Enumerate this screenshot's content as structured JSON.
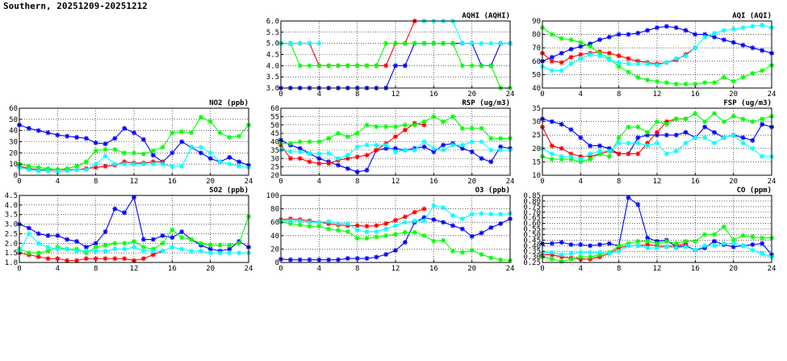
{
  "page_title": "Southern, 20251209-20251212",
  "series_colors": [
    "#0000ff",
    "#ff0000",
    "#00ff00",
    "#00ffff"
  ],
  "chart_data": [
    {
      "id": "aqhi",
      "type": "line",
      "title": "AQHI (AQHI)",
      "xlim": [
        0,
        24
      ],
      "xticks": [
        0,
        4,
        8,
        12,
        16,
        20,
        24
      ],
      "ylim": [
        3.0,
        6.0
      ],
      "yticks": [
        "3.0",
        "3.5",
        "4.0",
        "4.5",
        "5.0",
        "5.5",
        "6.0"
      ],
      "series": [
        {
          "name": "blue",
          "values": [
            3,
            3,
            3,
            3,
            3,
            3,
            3,
            3,
            3,
            3,
            3,
            3,
            4,
            4,
            5,
            5,
            5,
            5,
            5,
            5,
            5,
            4,
            4,
            5,
            5
          ]
        },
        {
          "name": "red",
          "values": [
            5,
            5,
            5,
            5,
            4,
            4,
            4,
            4,
            4,
            4,
            4,
            4,
            5,
            5,
            6,
            6,
            null,
            null,
            null,
            null,
            null,
            null,
            null,
            null,
            null
          ]
        },
        {
          "name": "green",
          "values": [
            5,
            5,
            4,
            4,
            4,
            4,
            4,
            4,
            4,
            4,
            4,
            5,
            5,
            5,
            5,
            5,
            5,
            5,
            5,
            4,
            4,
            4,
            4,
            3,
            3
          ]
        },
        {
          "name": "cyan",
          "values": [
            5,
            5,
            5,
            5,
            5,
            null,
            null,
            null,
            null,
            null,
            null,
            null,
            null,
            null,
            null,
            6,
            6,
            6,
            6,
            5,
            5,
            5,
            5,
            5,
            5
          ]
        }
      ]
    },
    {
      "id": "aqi",
      "type": "line",
      "title": "AQI (AQI)",
      "xlim": [
        0,
        24
      ],
      "xticks": [
        0,
        4,
        8,
        12,
        16,
        20,
        24
      ],
      "ylim": [
        40,
        90
      ],
      "yticks": [
        "40",
        "50",
        "60",
        "70",
        "80",
        "90"
      ],
      "series": [
        {
          "name": "blue",
          "values": [
            60,
            63,
            66,
            69,
            71,
            73,
            76,
            78,
            80,
            80,
            81,
            83,
            85,
            86,
            85,
            83,
            80,
            80,
            78,
            76,
            74,
            72,
            70,
            68,
            66
          ]
        },
        {
          "name": "red",
          "values": [
            66,
            60,
            59,
            63,
            65,
            66,
            67,
            66,
            64,
            62,
            60,
            59,
            58,
            59,
            61,
            65,
            70,
            null,
            null,
            null,
            null,
            null,
            null,
            null,
            null
          ]
        },
        {
          "name": "green",
          "values": [
            85,
            80,
            77,
            76,
            74,
            71,
            66,
            62,
            56,
            52,
            48,
            46,
            45,
            44,
            43,
            43,
            43,
            44,
            44,
            48,
            45,
            48,
            51,
            53,
            57
          ]
        },
        {
          "name": "cyan",
          "values": [
            56,
            53,
            53,
            58,
            62,
            65,
            64,
            61,
            59,
            58,
            58,
            58,
            57,
            59,
            62,
            64,
            70,
            78,
            81,
            83,
            84,
            85,
            86,
            87,
            85
          ]
        }
      ]
    },
    {
      "id": "no2",
      "type": "line",
      "title": "NO2 (ppb)",
      "xlim": [
        0,
        24
      ],
      "xticks": [
        0,
        4,
        8,
        12,
        16,
        20,
        24
      ],
      "ylim": [
        0,
        60
      ],
      "yticks": [
        "0",
        "10",
        "20",
        "30",
        "40",
        "50",
        "60"
      ],
      "series": [
        {
          "name": "blue",
          "values": [
            45,
            42,
            40,
            38,
            36,
            35,
            34,
            33,
            29,
            28,
            33,
            42,
            38,
            32,
            18,
            12,
            20,
            30,
            25,
            20,
            15,
            12,
            16,
            12,
            9
          ]
        },
        {
          "name": "red",
          "values": [
            8,
            6,
            5,
            5,
            5,
            5,
            5,
            6,
            7,
            8,
            9,
            12,
            11,
            11,
            12,
            12,
            null,
            null,
            null,
            null,
            null,
            null,
            null,
            null,
            null
          ]
        },
        {
          "name": "green",
          "values": [
            10,
            8,
            7,
            6,
            5,
            6,
            8,
            12,
            22,
            23,
            23,
            20,
            20,
            19,
            22,
            25,
            38,
            39,
            38,
            52,
            48,
            38,
            34,
            35,
            45
          ]
        },
        {
          "name": "cyan",
          "values": [
            7,
            5,
            4,
            4,
            3,
            4,
            5,
            5,
            10,
            17,
            10,
            10,
            10,
            10,
            10,
            10,
            8,
            8,
            25,
            25,
            20,
            12,
            10,
            8,
            7
          ]
        }
      ]
    },
    {
      "id": "rsp",
      "type": "line",
      "title": "RSP (ug/m3)",
      "xlim": [
        0,
        24
      ],
      "xticks": [
        0,
        4,
        8,
        12,
        16,
        20,
        24
      ],
      "ylim": [
        20,
        60
      ],
      "yticks": [
        "20",
        "25",
        "30",
        "35",
        "40",
        "45",
        "50",
        "55",
        "60"
      ],
      "series": [
        {
          "name": "blue",
          "values": [
            41,
            38,
            36,
            33,
            30,
            28,
            26,
            24,
            22,
            23,
            35,
            36,
            36,
            35,
            36,
            37,
            34,
            38,
            39,
            36,
            34,
            30,
            28,
            37,
            36
          ]
        },
        {
          "name": "red",
          "values": [
            38,
            30,
            30,
            28,
            27,
            27,
            29,
            30,
            31,
            32,
            35,
            39,
            43,
            47,
            51,
            50,
            null,
            null,
            null,
            null,
            null,
            null,
            null,
            null,
            null
          ]
        },
        {
          "name": "green",
          "values": [
            39,
            39,
            40,
            40,
            40,
            42,
            45,
            43,
            45,
            50,
            49,
            49,
            49,
            50,
            50,
            52,
            55,
            52,
            55,
            48,
            48,
            48,
            42,
            42,
            42
          ]
        },
        {
          "name": "cyan",
          "values": [
            35,
            34,
            34,
            33,
            33,
            33,
            30,
            32,
            37,
            38,
            38,
            38,
            34,
            35,
            35,
            40,
            36,
            35,
            38,
            38,
            40,
            40,
            35,
            35,
            35
          ]
        }
      ]
    },
    {
      "id": "fsp",
      "type": "line",
      "title": "FSP (ug/m3)",
      "xlim": [
        0,
        24
      ],
      "xticks": [
        0,
        4,
        8,
        12,
        16,
        20,
        24
      ],
      "ylim": [
        10,
        35
      ],
      "yticks": [
        "10",
        "15",
        "20",
        "25",
        "30",
        "35"
      ],
      "series": [
        {
          "name": "blue",
          "values": [
            31,
            30,
            29,
            27,
            24,
            21,
            21,
            20,
            18,
            18,
            24,
            25,
            25,
            25,
            25,
            26,
            24,
            28,
            26,
            24,
            25,
            24,
            23,
            29,
            28
          ]
        },
        {
          "name": "red",
          "values": [
            28,
            21,
            20,
            18,
            17,
            17,
            18,
            19,
            18,
            18,
            18,
            22,
            26,
            30,
            31,
            31,
            null,
            null,
            null,
            null,
            null,
            null,
            null,
            null,
            null
          ]
        },
        {
          "name": "green",
          "values": [
            17,
            16,
            16,
            16,
            15,
            16,
            18,
            17,
            24,
            28,
            28,
            26,
            30,
            29,
            31,
            31,
            33,
            30,
            33,
            30,
            32,
            31,
            30,
            31,
            32
          ]
        },
        {
          "name": "cyan",
          "values": [
            20,
            18,
            17,
            17,
            16,
            18,
            19,
            19,
            22,
            22,
            22,
            21,
            22,
            18,
            19,
            22,
            24,
            24,
            22,
            24,
            25,
            22,
            20,
            17,
            17
          ]
        }
      ]
    },
    {
      "id": "so2",
      "type": "line",
      "title": "SO2 (ppb)",
      "xlim": [
        0,
        24
      ],
      "xticks": [
        0,
        4,
        8,
        12,
        16,
        20,
        24
      ],
      "ylim": [
        1.0,
        4.5
      ],
      "yticks": [
        "1.0",
        "1.5",
        "2.0",
        "2.5",
        "3.0",
        "3.5",
        "4.0",
        "4.5"
      ],
      "series": [
        {
          "name": "blue",
          "values": [
            3.0,
            2.8,
            2.5,
            2.4,
            2.4,
            2.2,
            2.1,
            1.8,
            2.0,
            2.6,
            3.8,
            3.6,
            4.4,
            2.2,
            2.2,
            2.4,
            2.3,
            2.6,
            2.2,
            1.9,
            1.7,
            1.6,
            1.7,
            2.1,
            1.8
          ]
        },
        {
          "name": "red",
          "values": [
            1.5,
            1.4,
            1.3,
            1.2,
            1.2,
            1.1,
            1.1,
            1.2,
            1.2,
            1.2,
            1.2,
            1.2,
            1.1,
            1.2,
            1.4,
            1.6,
            null,
            null,
            null,
            null,
            null,
            null,
            null,
            null,
            null
          ]
        },
        {
          "name": "green",
          "values": [
            1.7,
            1.5,
            1.5,
            1.6,
            1.8,
            1.7,
            1.7,
            1.5,
            1.8,
            1.9,
            2.0,
            2.0,
            2.1,
            1.8,
            1.7,
            2.0,
            2.7,
            2.3,
            2.2,
            2.0,
            1.9,
            1.9,
            1.9,
            2.0,
            3.4
          ]
        },
        {
          "name": "cyan",
          "values": [
            1.6,
            2.5,
            2.0,
            1.8,
            1.7,
            1.7,
            1.6,
            1.6,
            1.6,
            1.6,
            1.7,
            1.7,
            1.8,
            1.6,
            1.6,
            1.6,
            1.8,
            1.7,
            1.6,
            1.6,
            1.5,
            1.5,
            1.5,
            1.5,
            1.5
          ]
        }
      ]
    },
    {
      "id": "o3",
      "type": "line",
      "title": "O3 (ppb)",
      "xlim": [
        0,
        24
      ],
      "xticks": [
        0,
        4,
        8,
        12,
        16,
        20,
        24
      ],
      "ylim": [
        0,
        100
      ],
      "yticks": [
        "0",
        "20",
        "40",
        "60",
        "80",
        "100"
      ],
      "series": [
        {
          "name": "blue",
          "values": [
            5,
            4,
            4,
            4,
            4,
            4,
            4,
            6,
            6,
            6,
            8,
            12,
            18,
            30,
            60,
            67,
            64,
            60,
            55,
            50,
            39,
            44,
            52,
            58,
            65
          ]
        },
        {
          "name": "red",
          "values": [
            64,
            65,
            64,
            62,
            60,
            58,
            56,
            55,
            55,
            54,
            55,
            58,
            63,
            68,
            75,
            80,
            null,
            null,
            null,
            null,
            null,
            null,
            null,
            null,
            null
          ]
        },
        {
          "name": "green",
          "values": [
            60,
            58,
            56,
            54,
            54,
            50,
            48,
            46,
            36,
            36,
            38,
            40,
            42,
            45,
            45,
            40,
            32,
            33,
            17,
            15,
            18,
            12,
            7,
            4,
            3
          ]
        },
        {
          "name": "cyan",
          "values": [
            62,
            62,
            62,
            60,
            60,
            61,
            58,
            58,
            48,
            46,
            46,
            50,
            55,
            60,
            62,
            62,
            85,
            82,
            70,
            65,
            72,
            73,
            72,
            72,
            73
          ]
        }
      ]
    },
    {
      "id": "co",
      "type": "line",
      "title": "CO (ppm)",
      "xlim": [
        0,
        24
      ],
      "xticks": [
        0,
        4,
        8,
        12,
        16,
        20,
        24
      ],
      "ylim": [
        0.25,
        0.85
      ],
      "yticks": [
        "0.25",
        "0.30",
        "0.35",
        "0.40",
        "0.45",
        "0.50",
        "0.55",
        "0.60",
        "0.65",
        "0.70",
        "0.75",
        "0.80",
        "0.85"
      ],
      "series": [
        {
          "name": "blue",
          "values": [
            0.42,
            0.42,
            0.43,
            0.41,
            0.41,
            0.4,
            0.41,
            0.42,
            0.4,
            0.83,
            0.77,
            0.47,
            0.44,
            0.45,
            0.39,
            0.4,
            0.36,
            0.38,
            0.44,
            0.41,
            0.39,
            0.4,
            0.41,
            0.42,
            0.32
          ]
        },
        {
          "name": "red",
          "values": [
            0.32,
            0.32,
            0.3,
            0.29,
            0.28,
            0.28,
            0.3,
            0.33,
            0.38,
            0.4,
            0.4,
            0.41,
            0.4,
            0.39,
            0.4,
            0.42,
            null,
            null,
            null,
            null,
            null,
            null,
            null,
            null,
            null
          ]
        },
        {
          "name": "green",
          "values": [
            0.3,
            0.28,
            0.26,
            0.28,
            0.3,
            0.3,
            0.32,
            0.34,
            0.4,
            0.42,
            0.44,
            0.44,
            0.42,
            0.44,
            0.42,
            0.44,
            0.44,
            0.5,
            0.5,
            0.57,
            0.45,
            0.49,
            0.48,
            0.47,
            0.47
          ]
        },
        {
          "name": "cyan",
          "values": [
            0.34,
            0.34,
            0.32,
            0.33,
            0.34,
            0.34,
            0.34,
            0.33,
            0.35,
            0.4,
            0.4,
            0.38,
            0.38,
            0.39,
            0.38,
            0.39,
            0.36,
            0.4,
            0.4,
            0.42,
            0.42,
            0.4,
            0.36,
            0.33,
            0.3
          ]
        }
      ]
    }
  ]
}
